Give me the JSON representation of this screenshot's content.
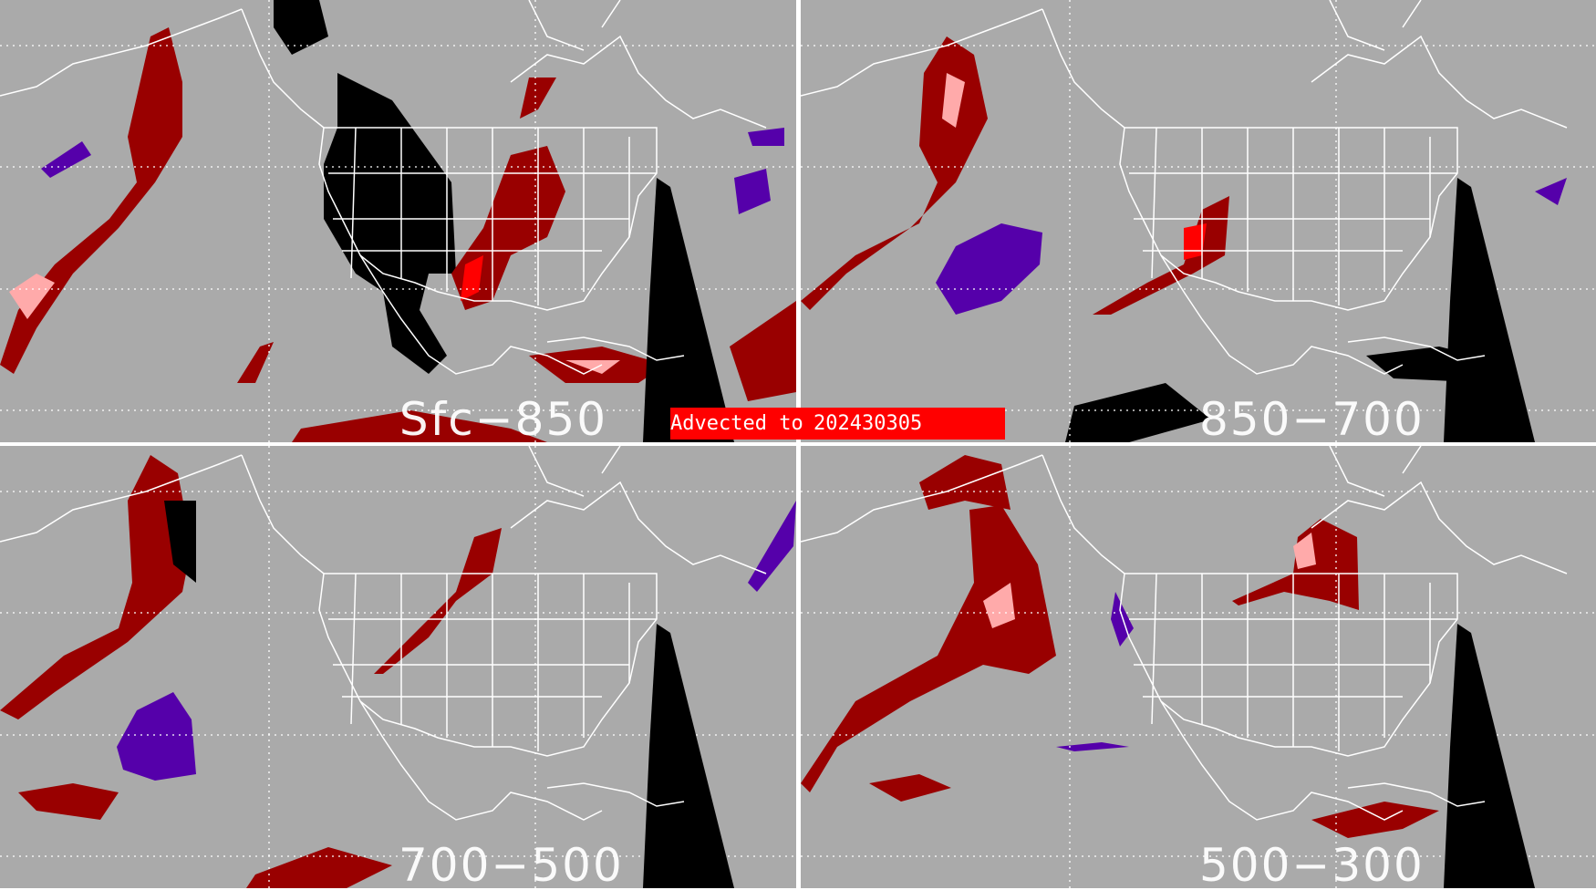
{
  "banner": {
    "prefix": "Advected to",
    "date": "202430305"
  },
  "panels": [
    {
      "label": "Sfc−850"
    },
    {
      "label": "850−700"
    },
    {
      "label": "700−500"
    },
    {
      "label": "500−300"
    }
  ],
  "colors": {
    "background": "#aaaaaa",
    "dark_red": "#990000",
    "pink": "#ffaaaa",
    "red": "#ff0000",
    "purple": "#5500aa",
    "black": "#000000",
    "outline": "#ffffff"
  }
}
